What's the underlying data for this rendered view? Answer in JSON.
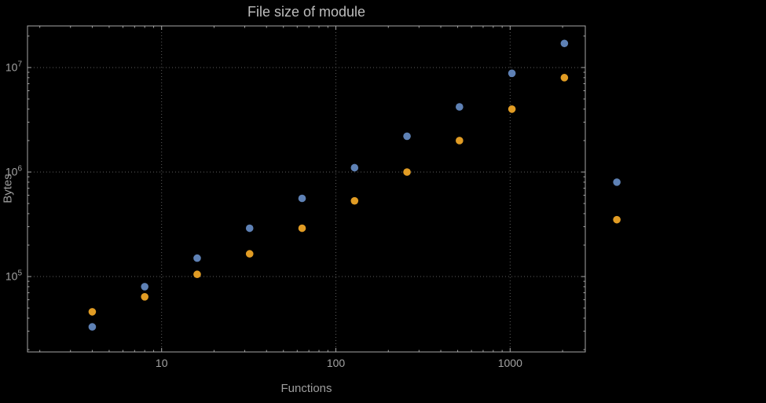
{
  "chart_data": {
    "type": "scatter",
    "title": "File size of module",
    "xlabel": "Functions",
    "ylabel": "Bytes",
    "xscale": "log",
    "yscale": "log",
    "grid": true,
    "legend": "none",
    "xlim": [
      1.7,
      2700
    ],
    "ylim": [
      19000,
      25000000
    ],
    "x_ticks": [
      {
        "v": 10,
        "label": "10"
      },
      {
        "v": 100,
        "label": "100"
      },
      {
        "v": 1000,
        "label": "1000"
      }
    ],
    "y_ticks": [
      {
        "v": 100000,
        "base": "10",
        "exp": "5"
      },
      {
        "v": 1000000,
        "base": "10",
        "exp": "6"
      },
      {
        "v": 10000000,
        "base": "10",
        "exp": "7"
      }
    ],
    "x": [
      4,
      8,
      16,
      32,
      64,
      128,
      256,
      512,
      1024,
      2048,
      4096
    ],
    "series": [
      {
        "name": "blue",
        "color": "#5e81b5",
        "values": [
          33000,
          80000,
          150000,
          290000,
          560000,
          1100000,
          2200000,
          4200000,
          8800000,
          17000000,
          800000
        ]
      },
      {
        "name": "orange",
        "color": "#e19c24",
        "values": [
          46000,
          64000,
          105000,
          165000,
          290000,
          530000,
          1000000,
          2000000,
          4000000,
          8000000,
          350000
        ]
      }
    ],
    "colors": {
      "background": "#000000",
      "frame": "#a6a6a6",
      "grid": "#5e5e5e",
      "tick_label": "#a3a3a3",
      "title": "#bdbdbd",
      "axis_label": "#9e9e9e"
    }
  }
}
